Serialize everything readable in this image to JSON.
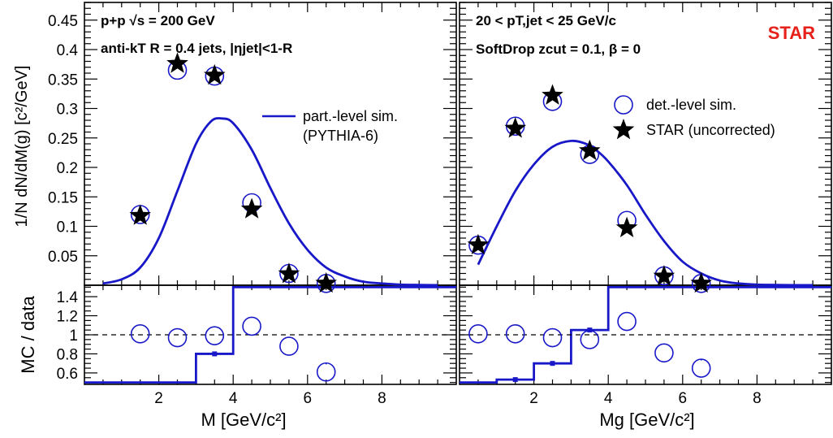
{
  "chart_data": [
    {
      "type": "scatter",
      "panel": "top-left",
      "annotations": [
        "p+p  √s = 200 GeV",
        "anti-kT R = 0.4 jets, |ηjet|<1-R"
      ],
      "ylabel": "1/N dN/dM(g) [c²/GeV]",
      "xlim": [
        0,
        10
      ],
      "ylim": [
        0,
        0.48
      ],
      "y_ticks": [
        "0.05",
        "0.1",
        "0.15",
        "0.2",
        "0.25",
        "0.3",
        "0.35",
        "0.4",
        "0.45"
      ],
      "legend": {
        "placement": "top-right",
        "entries": [
          "part.-level sim.",
          "(PYTHIA-6)"
        ]
      },
      "series": [
        {
          "name": "det.-level sim.",
          "x": [
            1.5,
            2.5,
            3.5,
            4.5,
            5.5,
            6.5
          ],
          "y": [
            0.12,
            0.365,
            0.355,
            0.14,
            0.02,
            0.003
          ]
        },
        {
          "name": "STAR (uncorrected)",
          "x": [
            1.5,
            2.5,
            3.5,
            4.5,
            5.5,
            6.5
          ],
          "y": [
            0.118,
            0.376,
            0.356,
            0.129,
            0.019,
            0.003
          ]
        },
        {
          "name": "part.-level sim. (PYTHIA-6)",
          "x": [
            0.5,
            1.0,
            1.5,
            2.0,
            2.5,
            3.0,
            3.4,
            3.7,
            4.0,
            4.5,
            5.0,
            5.5,
            6.0,
            6.5,
            7.0,
            7.5,
            8.0,
            8.5,
            9.0,
            9.5
          ],
          "y": [
            0.003,
            0.01,
            0.03,
            0.08,
            0.16,
            0.24,
            0.278,
            0.283,
            0.275,
            0.23,
            0.165,
            0.105,
            0.06,
            0.03,
            0.015,
            0.006,
            0.003,
            0.001,
            0.0005,
            0.0002
          ]
        }
      ]
    },
    {
      "type": "scatter",
      "panel": "top-right",
      "annotations": [
        "20 < pT,jet < 25 GeV/c",
        "SoftDrop zcut = 0.1, β = 0"
      ],
      "label": "STAR",
      "xlim": [
        0,
        10
      ],
      "ylim": [
        0,
        0.48
      ],
      "legend": {
        "placement": "top-right",
        "entries": [
          "det.-level sim.",
          "STAR (uncorrected)"
        ]
      },
      "series": [
        {
          "name": "det.-level sim.",
          "x": [
            0.5,
            1.5,
            2.5,
            3.5,
            4.5,
            5.5,
            6.5
          ],
          "y": [
            0.068,
            0.27,
            0.312,
            0.222,
            0.11,
            0.016,
            0.003
          ]
        },
        {
          "name": "STAR (uncorrected)",
          "x": [
            0.5,
            1.5,
            2.5,
            3.5,
            4.5,
            5.5,
            6.5
          ],
          "y": [
            0.068,
            0.266,
            0.322,
            0.228,
            0.097,
            0.015,
            0.003
          ]
        },
        {
          "name": "part.-level sim. (PYTHIA-6)",
          "x": [
            0.5,
            1.0,
            1.5,
            2.0,
            2.5,
            3.0,
            3.4,
            3.7,
            4.0,
            4.5,
            5.0,
            5.5,
            6.0,
            6.5,
            7.0,
            7.5,
            8.0,
            8.5,
            9.0,
            9.5
          ],
          "y": [
            0.035,
            0.1,
            0.16,
            0.205,
            0.235,
            0.245,
            0.24,
            0.228,
            0.21,
            0.17,
            0.12,
            0.075,
            0.04,
            0.02,
            0.008,
            0.003,
            0.001,
            0.0005,
            0.0002,
            0.0001
          ]
        }
      ]
    },
    {
      "type": "scatter",
      "panel": "bottom-left",
      "xlabel": "M [GeV/c²]",
      "ylabel": "MC / data",
      "xlim": [
        0,
        10
      ],
      "ylim": [
        0.48,
        1.52
      ],
      "x_ticks": [
        "2",
        "4",
        "6",
        "8"
      ],
      "y_ticks": [
        "0.6",
        "0.8",
        "1",
        "1.2",
        "1.4"
      ],
      "reference_line": 1.0,
      "series": [
        {
          "name": "det.-level sim.",
          "x": [
            1.5,
            2.5,
            3.5,
            4.5,
            5.5,
            6.5
          ],
          "y": [
            1.01,
            0.97,
            0.99,
            1.09,
            0.88,
            0.61
          ],
          "err": [
            0,
            0,
            0,
            0,
            0,
            0.08
          ]
        },
        {
          "name": "part.-level sim. (PYTHIA-6)",
          "type": "step",
          "edges": [
            0,
            1,
            2,
            3,
            4,
            5,
            6,
            7,
            8,
            9,
            10
          ],
          "y": [
            0.5,
            0.5,
            0.5,
            0.8,
            1.5,
            1.5,
            1.5,
            1.5,
            1.5,
            1.5
          ],
          "err": [
            0,
            0,
            0,
            0.01,
            0,
            0,
            0,
            0,
            0,
            0
          ]
        }
      ]
    },
    {
      "type": "scatter",
      "panel": "bottom-right",
      "xlabel": "Mg [GeV/c²]",
      "xlim": [
        0,
        10
      ],
      "ylim": [
        0.48,
        1.52
      ],
      "x_ticks": [
        "2",
        "4",
        "6",
        "8"
      ],
      "reference_line": 1.0,
      "series": [
        {
          "name": "det.-level sim.",
          "x": [
            0.5,
            1.5,
            2.5,
            3.5,
            4.5,
            5.5,
            6.5
          ],
          "y": [
            1.01,
            1.01,
            0.97,
            0.95,
            1.14,
            0.81,
            0.65
          ],
          "err": [
            0,
            0,
            0,
            0,
            0,
            0,
            0.08
          ]
        },
        {
          "name": "part.-level sim. (PYTHIA-6)",
          "type": "step",
          "edges": [
            0,
            1,
            2,
            3,
            4,
            5,
            6,
            7,
            8,
            9,
            10
          ],
          "y": [
            0.5,
            0.53,
            0.7,
            1.05,
            1.5,
            1.5,
            1.5,
            1.5,
            1.5,
            1.5
          ],
          "err": [
            0,
            0.01,
            0.01,
            0.01,
            0,
            0,
            0,
            0,
            0,
            0
          ]
        }
      ]
    }
  ],
  "colors": {
    "det_marker": "#1818c8",
    "curve": "#1818c8",
    "star": "#000000",
    "star_label": "#e8201a"
  }
}
